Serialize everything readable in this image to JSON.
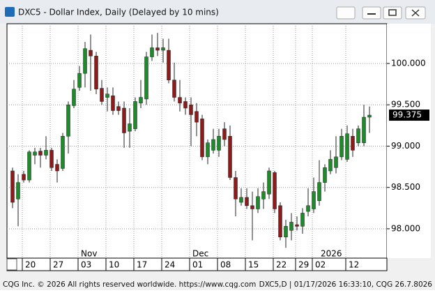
{
  "window_title": "DXC5 - Dollar Index, Daily (Delayed by 10 mins)",
  "footer_left": "CQG Inc. © 2026 All rights reserved worldwide. https://www.cqg.com",
  "footer_right": "DXC5,D | 01/17/2026 16:33:10, CQG 26.7.8026",
  "chart_data": {
    "type": "candlestick",
    "categories": [
      null,
      null,
      "20",
      null,
      null,
      null,
      null,
      "27",
      null,
      null,
      null,
      null,
      "03",
      null,
      null,
      null,
      null,
      "10",
      null,
      null,
      null,
      null,
      "17",
      null,
      null,
      null,
      null,
      "24",
      null,
      null,
      null,
      null,
      "01",
      null,
      null,
      null,
      null,
      "08",
      null,
      null,
      null,
      null,
      "15",
      null,
      null,
      null,
      null,
      "22",
      null,
      null,
      null,
      "29",
      null,
      null,
      "02",
      null,
      null,
      null,
      null,
      null,
      "12",
      null,
      null,
      null,
      null
    ],
    "month_labels": [
      null,
      null,
      null,
      null,
      null,
      null,
      null,
      null,
      null,
      null,
      null,
      null,
      "Nov",
      null,
      null,
      null,
      null,
      null,
      null,
      null,
      null,
      null,
      null,
      null,
      null,
      null,
      null,
      null,
      null,
      null,
      null,
      null,
      "Dec",
      null,
      null,
      null,
      null,
      null,
      null,
      null,
      null,
      null,
      null,
      null,
      null,
      null,
      null,
      null,
      null,
      null,
      null,
      null,
      null,
      null,
      null,
      "2026",
      null,
      null,
      null,
      null,
      null,
      null,
      null,
      null,
      null,
      null
    ],
    "open": [
      98.7,
      98.36,
      98.66,
      98.59,
      98.89,
      98.94,
      98.89,
      98.95,
      98.78,
      98.73,
      99.12,
      99.49,
      99.71,
      99.88,
      100.16,
      100.09,
      99.7,
      99.59,
      99.61,
      99.48,
      99.46,
      99.18,
      99.21,
      99.52,
      99.57,
      100.08,
      100.19,
      100.16,
      100.16,
      99.8,
      99.59,
      99.54,
      99.5,
      99.42,
      99.33,
      98.87,
      98.95,
      98.95,
      99.21,
      99.12,
      98.62,
      98.32,
      98.38,
      98.28,
      98.24,
      98.36,
      98.42,
      98.68,
      98.28,
      97.9,
      97.98,
      98.05,
      98.03,
      98.21,
      98.24,
      98.34,
      98.56,
      98.7,
      98.74,
      98.87,
      98.84,
      99.12,
      99.04,
      99.04,
      99.35
    ],
    "high": [
      98.74,
      98.66,
      98.7,
      98.95,
      98.98,
      98.98,
      99.12,
      98.98,
      98.84,
      99.16,
      99.54,
      99.8,
      99.97,
      100.26,
      100.35,
      100.14,
      99.8,
      99.71,
      99.71,
      99.54,
      99.54,
      99.46,
      99.59,
      99.8,
      100.14,
      100.35,
      100.37,
      100.3,
      100.3,
      100.01,
      99.8,
      99.59,
      99.59,
      99.52,
      99.38,
      99.08,
      99.21,
      99.21,
      99.29,
      99.25,
      98.7,
      98.49,
      98.49,
      98.45,
      98.49,
      98.56,
      98.74,
      98.7,
      98.32,
      98.11,
      98.19,
      98.15,
      98.25,
      98.49,
      98.62,
      98.83,
      98.78,
      98.95,
      99.12,
      99.21,
      99.25,
      99.21,
      99.25,
      99.5,
      99.48
    ],
    "low": [
      98.25,
      98.03,
      98.56,
      98.56,
      98.78,
      98.74,
      98.84,
      98.7,
      98.56,
      98.7,
      98.91,
      99.46,
      99.67,
      99.71,
      99.67,
      99.63,
      99.5,
      99.42,
      99.38,
      99.38,
      98.98,
      98.98,
      99.18,
      99.46,
      99.5,
      100.03,
      100.09,
      100.01,
      99.76,
      99.54,
      99.42,
      99.38,
      99.0,
      99.12,
      98.83,
      98.78,
      98.91,
      98.87,
      99.0,
      98.59,
      98.15,
      98.28,
      98.24,
      97.86,
      98.19,
      98.24,
      98.36,
      98.19,
      97.86,
      97.77,
      97.86,
      97.98,
      97.94,
      98.15,
      98.19,
      98.28,
      98.45,
      98.66,
      98.67,
      98.83,
      98.81,
      98.87,
      99.0,
      99.0,
      99.16
    ],
    "close": [
      98.32,
      98.56,
      98.59,
      98.93,
      98.93,
      98.89,
      98.95,
      98.74,
      98.7,
      99.12,
      99.5,
      99.69,
      99.88,
      100.18,
      100.09,
      99.69,
      99.54,
      99.63,
      99.43,
      99.43,
      99.16,
      99.27,
      99.54,
      99.59,
      100.08,
      100.19,
      100.16,
      100.19,
      99.8,
      99.59,
      99.52,
      99.46,
      99.38,
      99.29,
      98.87,
      99.04,
      99.08,
      99.12,
      99.08,
      98.62,
      98.36,
      98.38,
      98.28,
      98.24,
      98.39,
      98.45,
      98.7,
      98.24,
      97.9,
      98.03,
      98.08,
      98.03,
      98.19,
      98.28,
      98.45,
      98.56,
      98.74,
      98.84,
      98.87,
      99.12,
      99.15,
      98.95,
      99.21,
      99.35,
      99.375
    ],
    "up_color": "#1f8a2a",
    "down_color": "#8e1b1b",
    "ylim": [
      97.645,
      100.481
    ],
    "yticks": [
      {
        "value": 98,
        "label": "98.000"
      },
      {
        "value": 98.5,
        "label": "98.500"
      },
      {
        "value": 99,
        "label": "99.000"
      },
      {
        "value": 99.5,
        "label": "99.500"
      },
      {
        "value": 100,
        "label": "100.000"
      }
    ],
    "last_price": 99.375,
    "grid": true
  }
}
